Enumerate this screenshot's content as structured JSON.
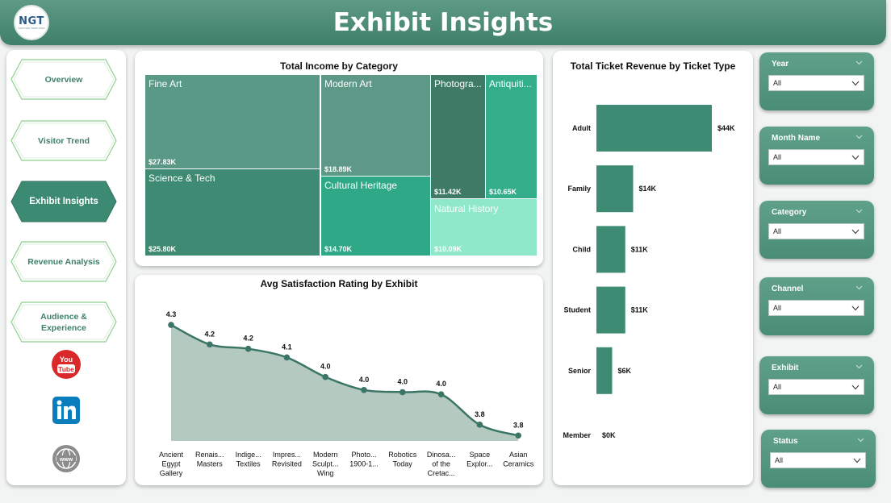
{
  "header": {
    "title": "Exhibit Insights",
    "logo_text": "NGT",
    "logo_subtext": "NEXTGEN TEMPLATES"
  },
  "nav": {
    "items": [
      {
        "label": "Overview",
        "active": false
      },
      {
        "label": "Visitor Trend",
        "active": false
      },
      {
        "label": "Exhibit Insights",
        "active": true
      },
      {
        "label": "Revenue Analysis",
        "active": false
      },
      {
        "label": "Audience & Experience",
        "active": false
      }
    ],
    "social": [
      {
        "icon": "youtube-icon",
        "text": "You Tube"
      },
      {
        "icon": "linkedin-icon",
        "text": "in"
      },
      {
        "icon": "globe-icon",
        "text": "www"
      }
    ]
  },
  "treemap": {
    "title": "Total Income by Category",
    "cells": [
      {
        "label": "Fine Art",
        "value": "$27.83K",
        "color": "#5a9985"
      },
      {
        "label": "Modern Art",
        "value": "$18.89K",
        "color": "#5e9886"
      },
      {
        "label": "Photogra...",
        "value": "$11.42K",
        "color": "#3e7a66"
      },
      {
        "label": "Antiquiti...",
        "value": "$10.65K",
        "color": "#33ad8a"
      },
      {
        "label": "Science & Tech",
        "value": "$25.80K",
        "color": "#3e8a72"
      },
      {
        "label": "Cultural Heritage",
        "value": "$14.70K",
        "color": "#2fa888"
      },
      {
        "label": "Natural History",
        "value": "$10.09K",
        "color": "#8ee8c9"
      }
    ]
  },
  "satisfaction": {
    "title": "Avg Satisfaction Rating by Exhibit"
  },
  "tickets": {
    "title": "Total Ticket Revenue by Ticket Type"
  },
  "slicers": [
    {
      "label": "Year",
      "value": "All"
    },
    {
      "label": "Month Name",
      "value": "All"
    },
    {
      "label": "Category",
      "value": "All"
    },
    {
      "label": "Channel",
      "value": "All"
    },
    {
      "label": "Exhibit",
      "value": "All"
    },
    {
      "label": "Status",
      "value": "All"
    }
  ],
  "colors": {
    "brand": "#3f806a",
    "accent_dark": "#3d8a72",
    "area_fill": "#b4c9c0",
    "bar": "#3d8b72"
  },
  "chart_data": [
    {
      "type": "treemap",
      "title": "Total Income by Category",
      "categories": [
        "Fine Art",
        "Science & Tech",
        "Modern Art",
        "Cultural Heritage",
        "Photogra...",
        "Antiquiti...",
        "Natural History"
      ],
      "values": [
        27.83,
        25.8,
        18.89,
        14.7,
        11.42,
        10.65,
        10.09
      ],
      "value_labels": [
        "$27.83K",
        "$25.80K",
        "$18.89K",
        "$14.70K",
        "$11.42K",
        "$10.65K",
        "$10.09K"
      ]
    },
    {
      "type": "area",
      "title": "Avg Satisfaction Rating by Exhibit",
      "categories": [
        "Ancient Egypt Gallery",
        "Renais... Masters",
        "Indige... Textiles",
        "Impres... Revisited",
        "Modern Sculpt... Wing",
        "Photo... 1900-1...",
        "Robotics Today",
        "Dinosa... of the Cretac...",
        "Space Explor...",
        "Asian Ceramics"
      ],
      "category_lines": [
        [
          "Ancient",
          "Egypt",
          "Gallery"
        ],
        [
          "Renais...",
          "Masters"
        ],
        [
          "Indige...",
          "Textiles"
        ],
        [
          "Impres...",
          "Revisited"
        ],
        [
          "Modern",
          "Sculpt...",
          "Wing"
        ],
        [
          "Photo...",
          "1900-1..."
        ],
        [
          "Robotics",
          "Today"
        ],
        [
          "Dinosa...",
          "of the",
          "Cretac..."
        ],
        [
          "Space",
          "Explor..."
        ],
        [
          "Asian",
          "Ceramics"
        ]
      ],
      "values": [
        4.3,
        4.2,
        4.2,
        4.1,
        4.0,
        4.0,
        4.0,
        4.0,
        3.8,
        3.8
      ],
      "display_values": [
        4.27,
        4.18,
        4.16,
        4.12,
        4.03,
        3.97,
        3.96,
        3.95,
        3.81,
        3.76
      ],
      "grid": false,
      "legend": "none"
    },
    {
      "type": "bar",
      "orientation": "horizontal",
      "title": "Total Ticket Revenue by Ticket Type",
      "categories": [
        "Adult",
        "Family",
        "Child",
        "Student",
        "Senior",
        "Member"
      ],
      "values": [
        44,
        14,
        11,
        11,
        6,
        0
      ],
      "value_labels": [
        "$44K",
        "$14K",
        "$11K",
        "$11K",
        "$6K",
        "$0K"
      ],
      "unit": "$K",
      "grid": false,
      "legend": "none"
    }
  ]
}
